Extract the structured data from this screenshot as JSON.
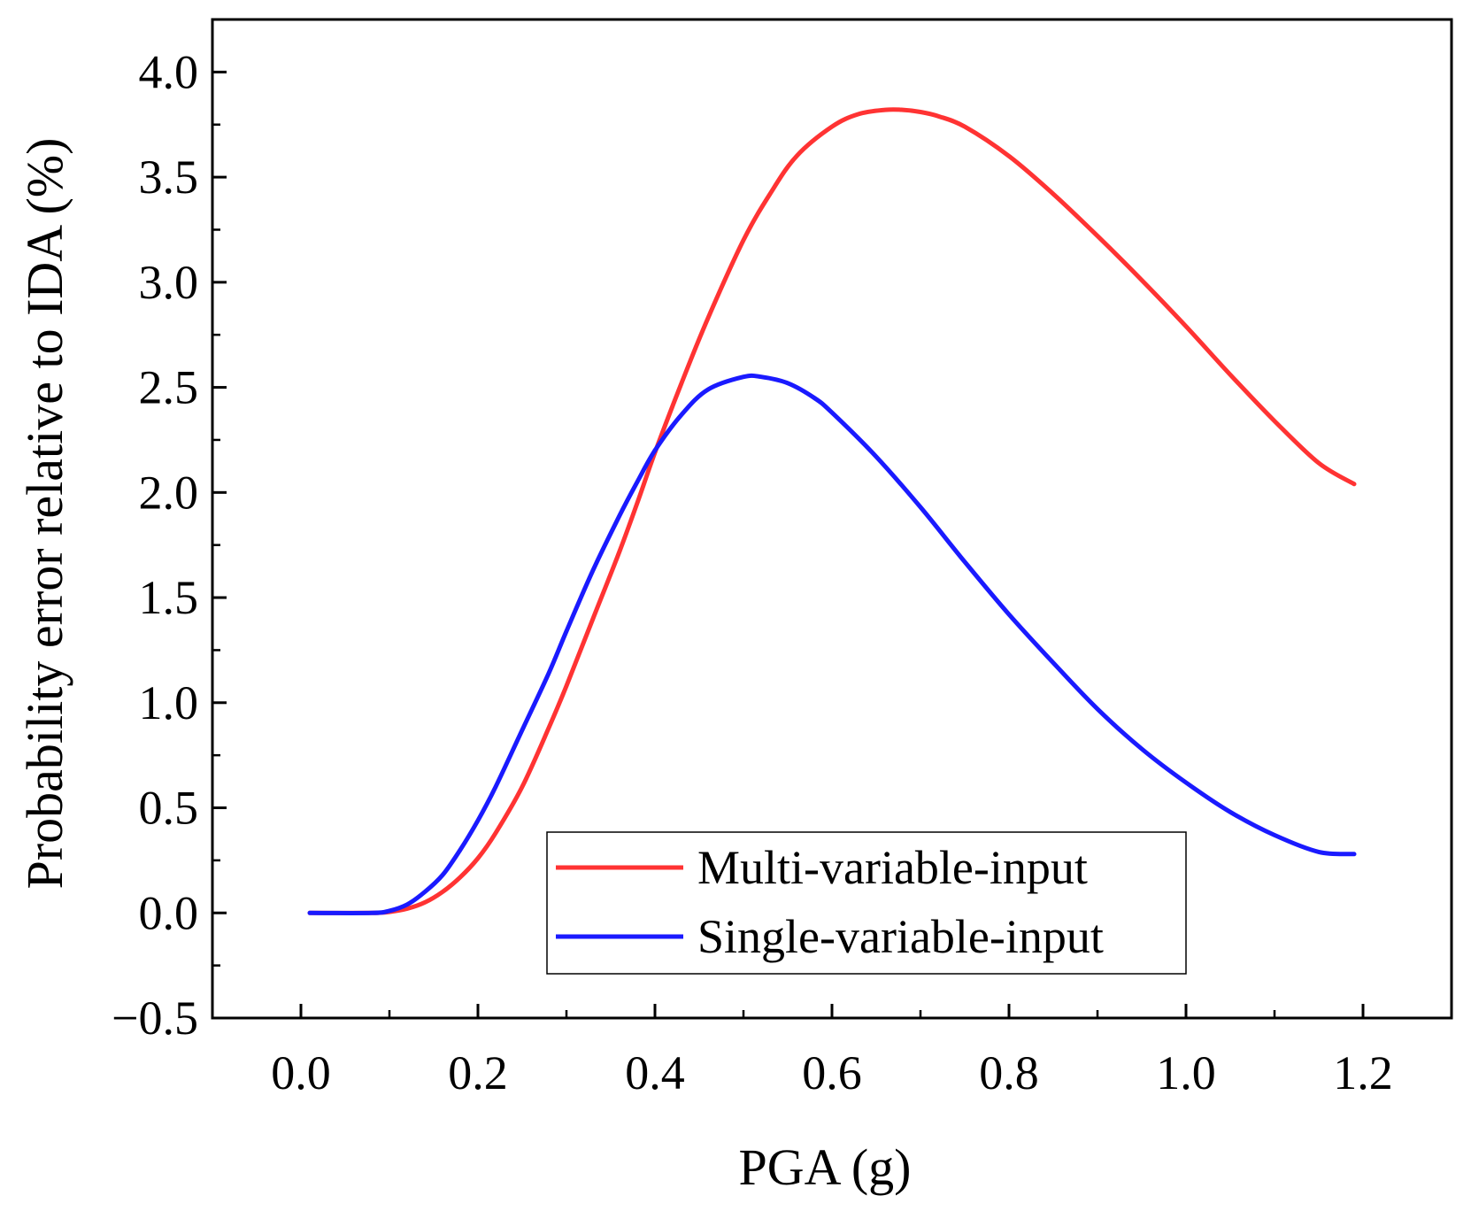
{
  "chart_data": {
    "type": "line",
    "title": "",
    "xlabel": "PGA (g)",
    "ylabel": "Probability error relative to IDA (%)",
    "xlim": [
      -0.1,
      1.3
    ],
    "ylim": [
      -0.5,
      4.25
    ],
    "xticks": [
      0.0,
      0.2,
      0.4,
      0.6,
      0.8,
      1.0,
      1.2
    ],
    "xtick_labels": [
      "0.0",
      "0.2",
      "0.4",
      "0.6",
      "0.8",
      "1.0",
      "1.2"
    ],
    "yticks": [
      -0.5,
      0.0,
      0.5,
      1.0,
      1.5,
      2.0,
      2.5,
      3.0,
      3.5,
      4.0
    ],
    "ytick_labels": [
      "−0.5",
      "0.0",
      "0.5",
      "1.0",
      "1.5",
      "2.0",
      "2.5",
      "3.0",
      "3.5",
      "4.0"
    ],
    "grid": false,
    "legend_position": "bottom-right",
    "series": [
      {
        "name": "Multi-variable-input",
        "color": "#ff3333",
        "x": [
          0.01,
          0.08,
          0.1,
          0.12,
          0.14,
          0.16,
          0.18,
          0.2,
          0.22,
          0.25,
          0.28,
          0.3,
          0.33,
          0.36,
          0.38,
          0.4,
          0.43,
          0.46,
          0.5,
          0.53,
          0.56,
          0.6,
          0.63,
          0.66,
          0.68,
          0.7,
          0.72,
          0.75,
          0.8,
          0.85,
          0.9,
          0.95,
          1.0,
          1.05,
          1.1,
          1.15,
          1.19
        ],
        "y": [
          0.0,
          0.0,
          0.005,
          0.02,
          0.05,
          0.1,
          0.17,
          0.26,
          0.38,
          0.6,
          0.88,
          1.08,
          1.4,
          1.72,
          1.95,
          2.19,
          2.52,
          2.83,
          3.2,
          3.42,
          3.6,
          3.74,
          3.8,
          3.82,
          3.82,
          3.81,
          3.79,
          3.74,
          3.6,
          3.42,
          3.22,
          3.01,
          2.79,
          2.56,
          2.34,
          2.14,
          2.04
        ]
      },
      {
        "name": "Single-variable-input",
        "color": "#1a1aff",
        "x": [
          0.01,
          0.08,
          0.1,
          0.12,
          0.14,
          0.16,
          0.18,
          0.2,
          0.22,
          0.25,
          0.28,
          0.3,
          0.33,
          0.36,
          0.38,
          0.4,
          0.43,
          0.46,
          0.5,
          0.52,
          0.55,
          0.58,
          0.6,
          0.65,
          0.7,
          0.75,
          0.8,
          0.85,
          0.9,
          0.95,
          1.0,
          1.05,
          1.1,
          1.15,
          1.19
        ],
        "y": [
          0.0,
          0.0,
          0.01,
          0.04,
          0.1,
          0.18,
          0.3,
          0.44,
          0.6,
          0.87,
          1.14,
          1.34,
          1.63,
          1.89,
          2.05,
          2.2,
          2.37,
          2.49,
          2.55,
          2.55,
          2.52,
          2.45,
          2.38,
          2.17,
          1.93,
          1.67,
          1.42,
          1.19,
          0.97,
          0.78,
          0.62,
          0.48,
          0.37,
          0.29,
          0.28
        ]
      }
    ]
  }
}
